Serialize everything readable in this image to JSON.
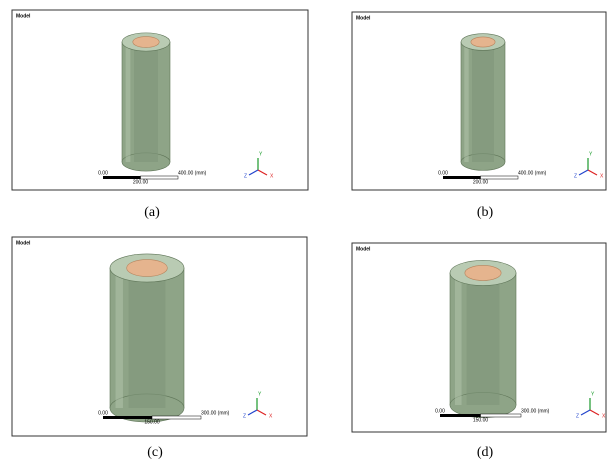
{
  "panels": [
    {
      "tag": "Model",
      "scale_start": "0.00",
      "scale_end": "400.00 (mm)",
      "scale_mid": "200.00",
      "axes": [
        "Y",
        "X",
        "Z"
      ],
      "caption": "(a)"
    },
    {
      "tag": "Model",
      "scale_start": "0.00",
      "scale_end": "400.00 (mm)",
      "scale_mid": "200.00",
      "axes": [
        "Y",
        "X",
        "Z"
      ],
      "caption": "(b)"
    },
    {
      "tag": "Model",
      "scale_start": "0.00",
      "scale_end": "300.00 (mm)",
      "scale_mid": "150.00",
      "axes": [
        "Y",
        "X",
        "Z"
      ],
      "caption": "(c)"
    },
    {
      "tag": "Model",
      "scale_start": "0.00",
      "scale_end": "300.00 (mm)",
      "scale_mid": "150.00",
      "axes": [
        "Y",
        "X",
        "Z"
      ],
      "caption": "(d)"
    }
  ]
}
